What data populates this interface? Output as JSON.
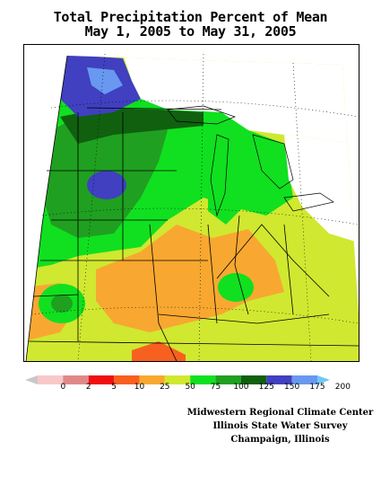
{
  "title": {
    "line1": "Total Precipitation Percent of Mean",
    "line2": "May 1, 2005 to May 31, 2005"
  },
  "legend": {
    "labels": [
      "0",
      "2",
      "5",
      "10",
      "25",
      "50",
      "75",
      "100",
      "125",
      "150",
      "175",
      "200"
    ],
    "colors": [
      "#c8c8c8",
      "#f8c8c8",
      "#e08888",
      "#f01010",
      "#f86020",
      "#f8a830",
      "#d0e830",
      "#10e020",
      "#20a020",
      "#106010",
      "#4040c0",
      "#6898f0",
      "#70c8f8"
    ]
  },
  "map_colors": {
    "very_dry": "#f86020",
    "dry": "#f8a830",
    "near_normal": "#d0e830",
    "moist": "#10e020",
    "wet": "#20a020",
    "very_wet": "#106010",
    "extreme": "#4040c0",
    "extreme_high": "#6898f0"
  },
  "credits": {
    "line1": "Midwestern Regional Climate Center",
    "line2": "Illinois State Water Survey",
    "line3": "Champaign, Illinois"
  }
}
